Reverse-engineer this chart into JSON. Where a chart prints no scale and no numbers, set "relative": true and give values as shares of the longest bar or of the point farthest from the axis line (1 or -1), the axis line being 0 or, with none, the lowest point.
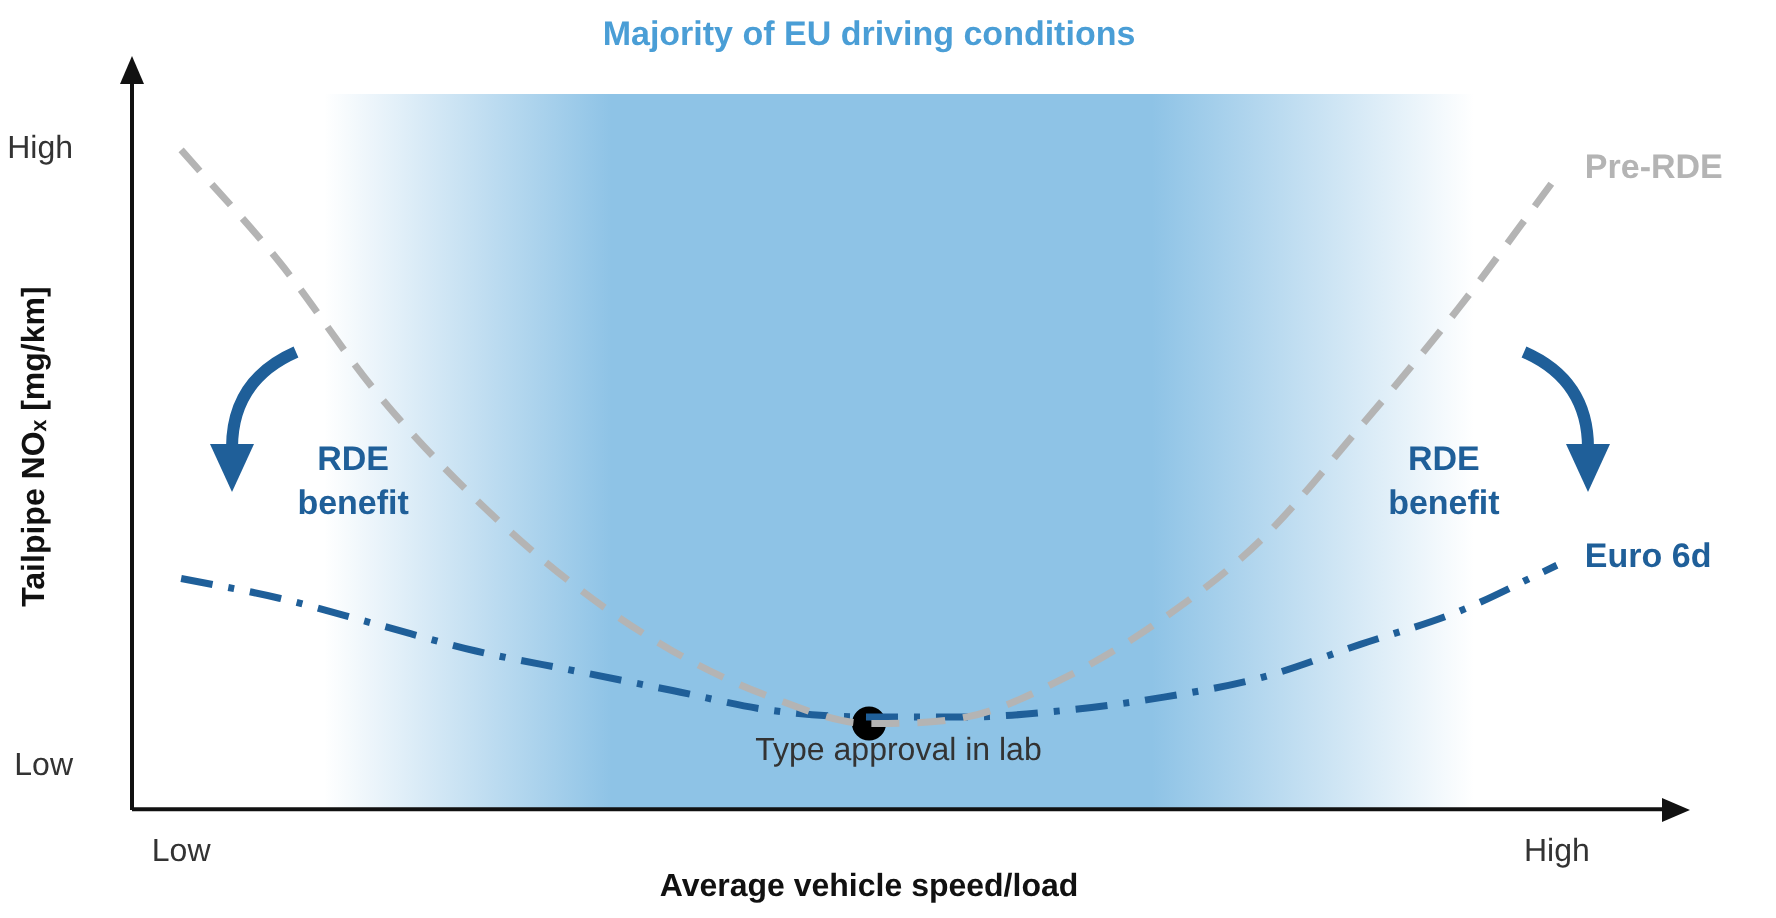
{
  "chart_data": {
    "type": "line",
    "relative": true,
    "xlabel": "Average vehicle speed/load",
    "ylabel": "Tailpipe NOₓ [mg/km]",
    "categories": [
      "Low",
      null,
      null,
      null,
      null,
      null,
      null,
      null,
      null,
      null,
      null,
      null,
      null,
      null,
      "High"
    ],
    "grid": false,
    "legend": false,
    "series": [
      {
        "name": "Pre-RDE",
        "color": "#b4b4b4",
        "line_style": "dashed",
        "marker": "none",
        "values": [
          1.0,
          0.83,
          0.63,
          0.47,
          0.34,
          0.24,
          0.17,
          0.13,
          0.14,
          0.2,
          0.29,
          0.41,
          0.58,
          0.76,
          0.96
        ]
      },
      {
        "name": "Euro 6d",
        "color": "#1f5f99",
        "line_style": "dashdot",
        "marker": "none",
        "values": [
          0.35,
          0.32,
          0.28,
          0.24,
          0.21,
          0.18,
          0.15,
          0.14,
          0.14,
          0.15,
          0.17,
          0.2,
          0.25,
          0.3,
          0.37
        ]
      },
      {
        "type": "scatter",
        "color": "#000000",
        "marker": "circle",
        "values": [
          null,
          null,
          null,
          null,
          null,
          null,
          null,
          0.13,
          null,
          null,
          null,
          null,
          null,
          null,
          null
        ]
      }
    ],
    "annotations": [
      "Majority of EU driving conditions",
      "High",
      "Low",
      "Type approval in lab",
      "RDE benefit",
      "RDE benefit"
    ]
  }
}
